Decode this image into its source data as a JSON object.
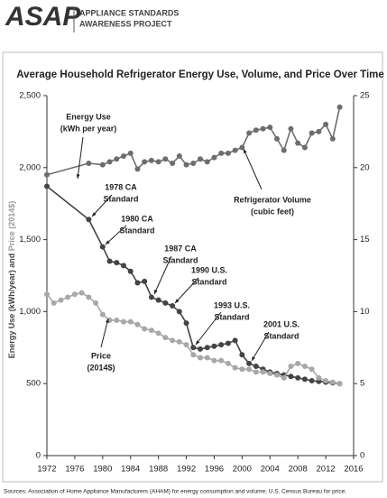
{
  "header": {
    "logo": "ASAP",
    "org": [
      "APPLIANCE STANDARDS",
      "AWARENESS PROJECT"
    ]
  },
  "source": "Sources: Association of Home Appliance Manufacturers (AHAM) for energy consumption and volume; U.S. Census Bureau for price.",
  "chart_data": {
    "type": "line",
    "title": "Average Household Refrigerator Energy Use, Volume, and Price Over Time",
    "ylabel": [
      "Energy Use (kWh/year)",
      "and",
      "Price (2014$)"
    ],
    "xlim": [
      1972,
      2016
    ],
    "xticks": [
      1972,
      1976,
      1980,
      1984,
      1988,
      1992,
      1996,
      2000,
      2004,
      2008,
      2012,
      2016
    ],
    "ylim": [
      0,
      2500
    ],
    "yticks": [
      0,
      500,
      {
        "value": 1000,
        "label": "1,000"
      },
      {
        "value": 1500,
        "label": "1,500"
      },
      {
        "value": 2000,
        "label": "2,000"
      },
      {
        "value": 2500,
        "label": "2,500"
      }
    ],
    "y2lim": [
      0,
      25
    ],
    "y2ticks": [
      0,
      5,
      10,
      15,
      20,
      25
    ],
    "grid": false,
    "series": [
      {
        "name": "Energy Use",
        "color": "#444444",
        "x": [
          1972,
          1978,
          1980,
          1981,
          1982,
          1983,
          1984,
          1985,
          1986,
          1987,
          1988,
          1989,
          1990,
          1991,
          1992,
          1993,
          1994,
          1995,
          1996,
          1997,
          1998,
          1999,
          2000,
          2001,
          2002,
          2003,
          2004,
          2005,
          2006,
          2007,
          2008,
          2009,
          2010,
          2011,
          2012,
          2013,
          2014
        ],
        "values": [
          1870,
          1640,
          1450,
          1350,
          1340,
          1320,
          1280,
          1200,
          1210,
          1100,
          1080,
          1060,
          1040,
          1000,
          920,
          750,
          740,
          750,
          760,
          770,
          780,
          800,
          700,
          640,
          620,
          600,
          580,
          570,
          560,
          550,
          540,
          530,
          520,
          515,
          510,
          505,
          500
        ]
      },
      {
        "name": "Refrigerator Volume",
        "color": "#6d6d6d",
        "axis": "y2",
        "x": [
          1972,
          1978,
          1980,
          1981,
          1982,
          1983,
          1984,
          1985,
          1986,
          1987,
          1988,
          1989,
          1990,
          1991,
          1992,
          1993,
          1994,
          1995,
          1996,
          1997,
          1998,
          1999,
          2000,
          2001,
          2002,
          2003,
          2004,
          2005,
          2006,
          2007,
          2008,
          2009,
          2010,
          2011,
          2012,
          2013,
          2014
        ],
        "values": [
          19.5,
          20.3,
          20.2,
          20.4,
          20.6,
          20.8,
          21.0,
          19.9,
          20.4,
          20.5,
          20.4,
          20.6,
          20.3,
          20.8,
          20.2,
          20.3,
          20.6,
          20.4,
          20.7,
          21.0,
          21.0,
          21.2,
          21.4,
          22.4,
          22.6,
          22.7,
          22.8,
          22.0,
          21.2,
          22.7,
          21.7,
          21.4,
          22.4,
          22.5,
          23.0,
          22.0,
          24.2
        ]
      },
      {
        "name": "Price",
        "color": "#a8a8a8",
        "x": [
          1972,
          1973,
          1974,
          1975,
          1976,
          1977,
          1978,
          1979,
          1980,
          1981,
          1982,
          1983,
          1984,
          1985,
          1986,
          1987,
          1988,
          1989,
          1990,
          1991,
          1992,
          1993,
          1994,
          1995,
          1996,
          1997,
          1998,
          1999,
          2000,
          2001,
          2002,
          2003,
          2004,
          2005,
          2006,
          2007,
          2008,
          2009,
          2010,
          2011,
          2012,
          2013,
          2014
        ],
        "values": [
          1120,
          1060,
          1080,
          1100,
          1120,
          1130,
          1100,
          1060,
          980,
          940,
          940,
          930,
          930,
          910,
          880,
          870,
          850,
          820,
          800,
          790,
          770,
          700,
          680,
          680,
          660,
          660,
          640,
          610,
          600,
          600,
          580,
          580,
          570,
          560,
          540,
          620,
          640,
          620,
          600,
          540,
          520,
          510,
          500
        ]
      }
    ],
    "annotations": [
      [
        "Energy Use",
        "(kWh per year)"
      ],
      [
        "1978 CA",
        "Standard"
      ],
      [
        "1980 CA",
        "Standard"
      ],
      [
        "1987 CA",
        "Standard"
      ],
      [
        "1990 U.S.",
        "Standard"
      ],
      [
        "1993 U.S.",
        "Standard"
      ],
      [
        "2001 U.S.",
        "Standard"
      ],
      [
        "Refrigerator Volume",
        "(cubic feet)"
      ],
      [
        "Price",
        "(2014$)"
      ]
    ]
  }
}
